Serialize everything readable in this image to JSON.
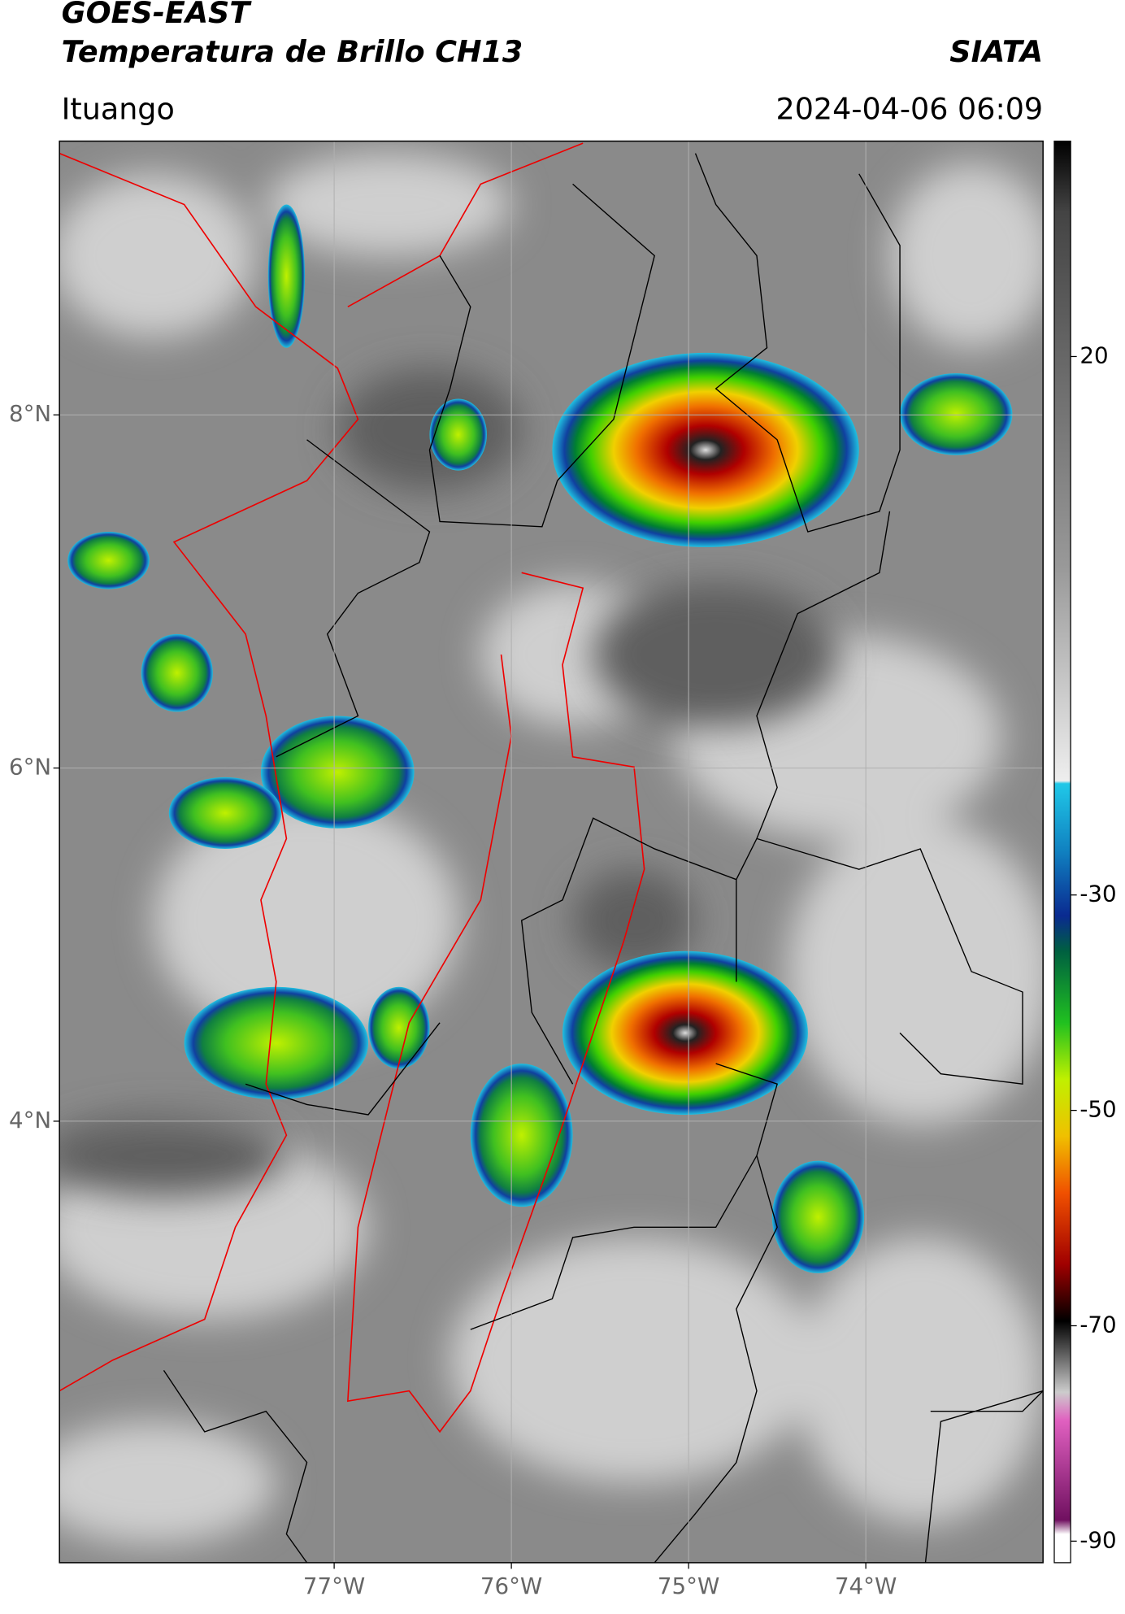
{
  "header": {
    "title": "GOES-EAST",
    "subtitle": "Temperatura de Brillo CH13",
    "source": "SIATA",
    "region": "Ituango",
    "datetime": "2024-04-06 06:09"
  },
  "map": {
    "xlim": [
      -78.55,
      -73
    ],
    "ylim": [
      1.5,
      9.55
    ],
    "xticks": [
      {
        "value": -77,
        "label": "77°W"
      },
      {
        "value": -76,
        "label": "76°W"
      },
      {
        "value": -75,
        "label": "75°W"
      },
      {
        "value": -74,
        "label": "74°W"
      }
    ],
    "yticks": [
      {
        "value": 8,
        "label": "8°N"
      },
      {
        "value": 6,
        "label": "6°N"
      },
      {
        "value": 4,
        "label": "4°N"
      }
    ],
    "grid": true
  },
  "colorbar": {
    "lim": [
      -92,
      40
    ],
    "ticks": [
      20,
      -30,
      -50,
      -70,
      -90
    ]
  }
}
